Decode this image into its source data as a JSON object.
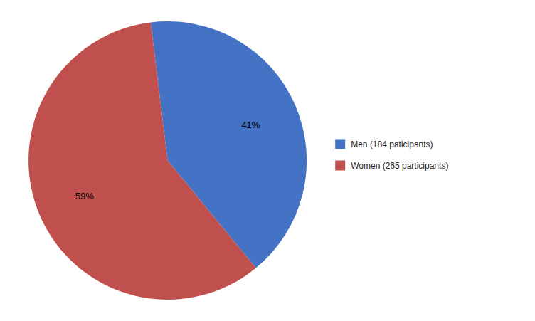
{
  "chart_data": {
    "type": "pie",
    "categories": [
      "Men (184 paticipants)",
      "Women (265 participants)"
    ],
    "values": [
      41,
      59
    ],
    "value_labels": [
      "41%",
      "59%"
    ],
    "colors": [
      "#4472C4",
      "#C0504D"
    ],
    "data_labels": true,
    "legend": "right"
  }
}
